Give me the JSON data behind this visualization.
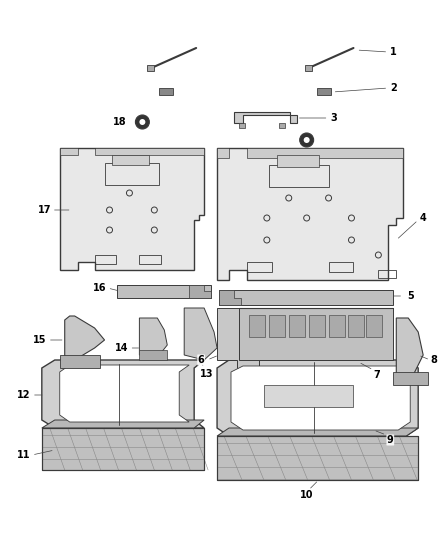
{
  "background_color": "#ffffff",
  "line_color": "#3a3a3a",
  "label_color": "#000000",
  "fig_w": 4.38,
  "fig_h": 5.33,
  "dpi": 100
}
